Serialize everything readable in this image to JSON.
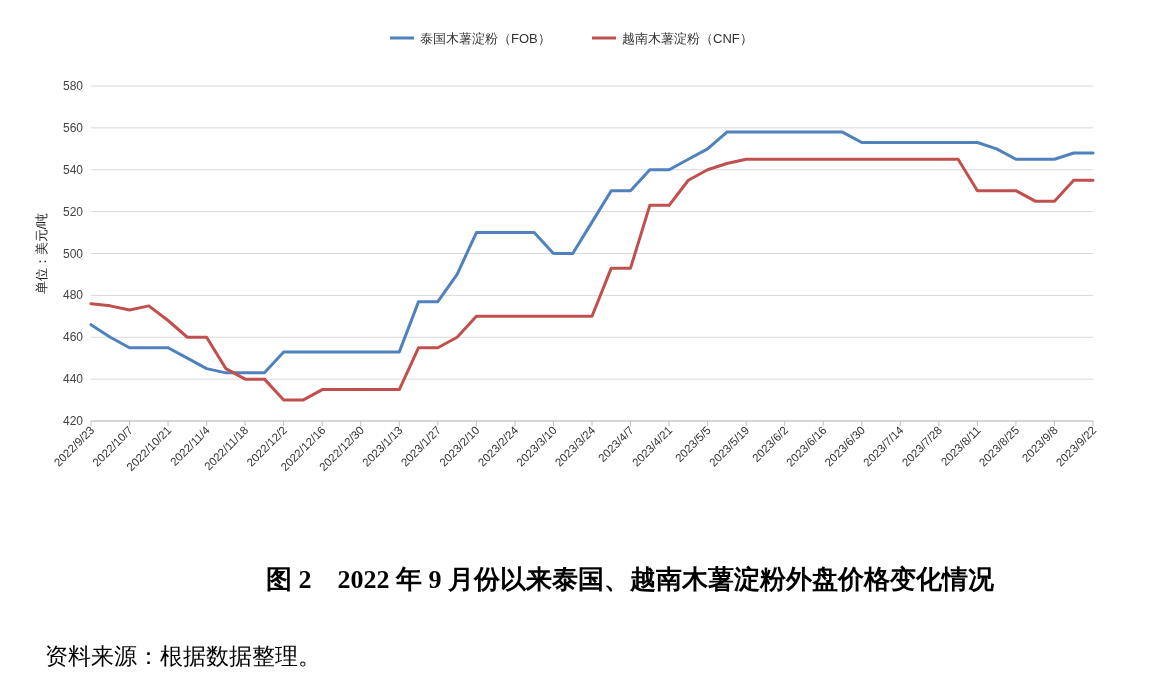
{
  "chart_data": {
    "type": "line",
    "title": "图 2　2022 年 9 月份以来泰国、越南木薯淀粉外盘价格变化情况",
    "ylabel": "单位：美元/吨",
    "categories": [
      "2022/9/23",
      null,
      "2022/10/7",
      null,
      "2022/10/21",
      null,
      "2022/11/4",
      null,
      "2022/11/18",
      null,
      "2022/12/2",
      null,
      "2022/12/16",
      null,
      "2022/12/30",
      null,
      "2023/1/13",
      null,
      "2023/1/27",
      null,
      "2023/2/10",
      null,
      "2023/2/24",
      null,
      "2023/3/10",
      null,
      "2023/3/24",
      null,
      "2023/4/7",
      null,
      "2023/4/21",
      null,
      "2023/5/5",
      null,
      "2023/5/19",
      null,
      "2023/6/2",
      null,
      "2023/6/16",
      null,
      "2023/6/30",
      null,
      "2023/7/14",
      null,
      "2023/7/28",
      null,
      "2023/8/11",
      null,
      "2023/8/25",
      null,
      "2023/9/8",
      null,
      "2023/9/22"
    ],
    "series": [
      {
        "name": "泰国木薯淀粉（FOB）",
        "color": "#4f81bd",
        "values": [
          466,
          460,
          455,
          455,
          455,
          450,
          445,
          443,
          443,
          443,
          453,
          453,
          453,
          453,
          453,
          453,
          453,
          477,
          477,
          490,
          510,
          510,
          510,
          510,
          500,
          500,
          515,
          530,
          530,
          540,
          540,
          545,
          550,
          558,
          558,
          558,
          558,
          558,
          558,
          558,
          553,
          553,
          553,
          553,
          553,
          553,
          553,
          550,
          545,
          545,
          545,
          548,
          548
        ]
      },
      {
        "name": "越南木薯淀粉（CNF）",
        "color": "#c0504d",
        "values": [
          476,
          475,
          473,
          475,
          468,
          460,
          460,
          445,
          440,
          440,
          430,
          430,
          435,
          435,
          435,
          435,
          435,
          455,
          455,
          460,
          470,
          470,
          470,
          470,
          470,
          470,
          470,
          493,
          493,
          523,
          523,
          535,
          540,
          543,
          545,
          545,
          545,
          545,
          545,
          545,
          545,
          545,
          545,
          545,
          545,
          545,
          530,
          530,
          530,
          525,
          525,
          535,
          535
        ]
      }
    ],
    "ylim": [
      420,
      580
    ],
    "yticks": [
      420,
      440,
      460,
      480,
      500,
      520,
      540,
      560,
      580
    ],
    "grid": "y",
    "legend": "top",
    "annotations": [
      "资料来源：根据数据整理。"
    ]
  }
}
